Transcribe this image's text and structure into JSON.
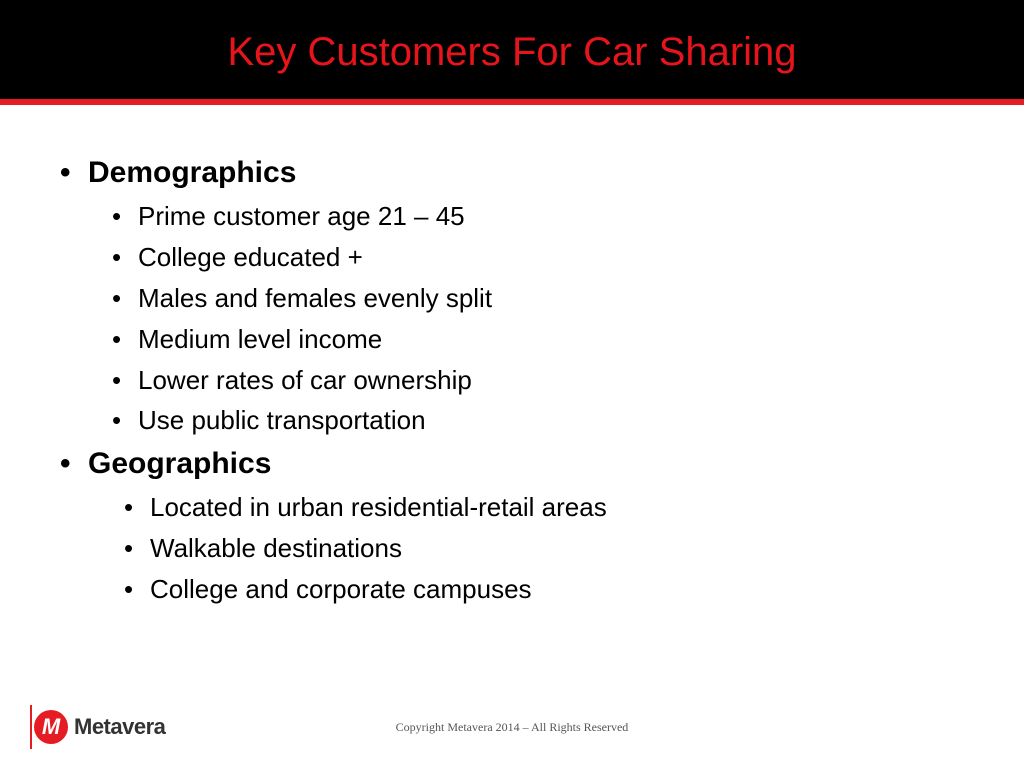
{
  "slide": {
    "title": "Key Customers For Car Sharing"
  },
  "sections": [
    {
      "heading": "Demographics",
      "items": [
        "Prime customer age 21 – 45",
        "College educated +",
        "Males and females evenly split",
        "Medium level income",
        "Lower rates of car ownership",
        "Use public transportation"
      ]
    },
    {
      "heading": "Geographics",
      "items": [
        "Located in urban residential-retail areas",
        "Walkable destinations",
        "College and corporate campuses"
      ]
    }
  ],
  "footer": {
    "copyright": "Copyright Metavera 2014 – All Rights Reserved",
    "logo_text": "Metavera",
    "logo_mark": "M"
  },
  "bullet": "•",
  "colors": {
    "accent": "#e51c23",
    "header_bg": "#000000"
  }
}
